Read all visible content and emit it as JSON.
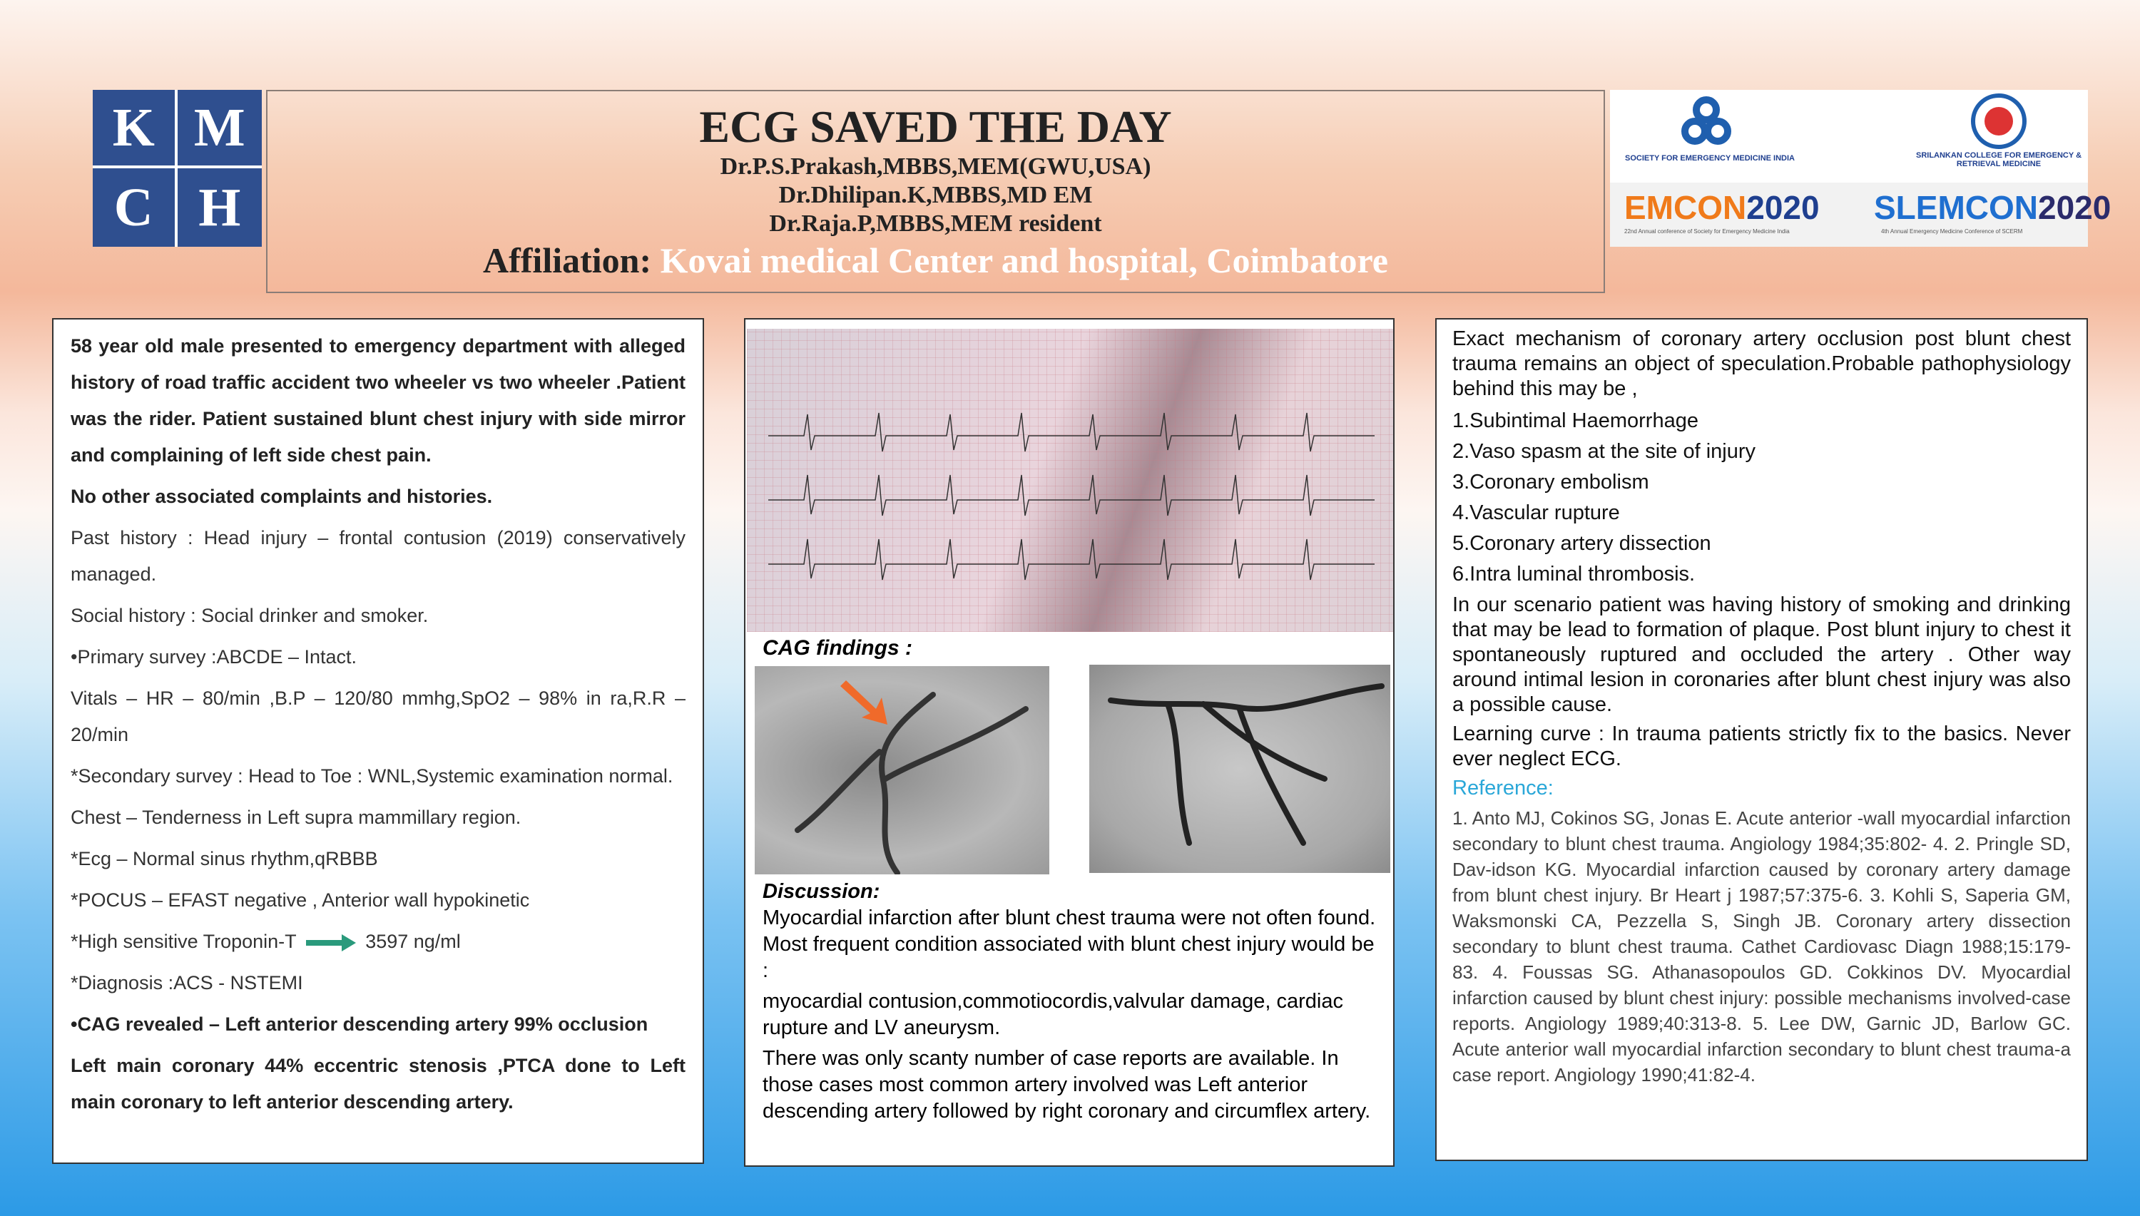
{
  "header": {
    "logo": [
      "K",
      "M",
      "C",
      "H"
    ],
    "title": "ECG SAVED THE DAY",
    "authors": [
      "Dr.P.S.Prakash,MBBS,MEM(GWU,USA)",
      "Dr.Dhilipan.K,MBBS,MD EM",
      "Dr.Raja.P,MBBS,MEM resident"
    ],
    "affiliation_label": "Affiliation:",
    "affiliation": "Kovai medical Center and hospital, Coimbatore"
  },
  "sponsors": {
    "semi": "SOCIETY FOR EMERGENCY MEDICINE INDIA",
    "scerm": "SRILANKAN COLLEGE FOR EMERGENCY & RETRIEVAL MEDICINE",
    "emcon": [
      "EMCON",
      "2020"
    ],
    "emcon_sub": "22nd Annual conference of Society for Emergency Medicine India",
    "slemcon": [
      "SLEMCON",
      "2020"
    ],
    "slemcon_sub": "4th Annual Emergency Medicine Conference of SCERM"
  },
  "case": {
    "items": [
      "58 year old male presented to emergency department with alleged history of road traffic accident two wheeler vs two wheeler .Patient was the rider. Patient sustained blunt chest injury with side mirror and complaining of left side chest pain.",
      "No other associated complaints and histories.",
      "Past history : Head injury – frontal contusion (2019) conservatively managed.",
      "Social history : Social drinker and smoker.",
      "•Primary survey :ABCDE – Intact.",
      "Vitals – HR – 80/min ,B.P – 120/80 mmhg,SpO2 – 98% in ra,R.R – 20/min",
      "*Secondary survey : Head to Toe : WNL,Systemic examination normal.",
      "Chest – Tenderness in Left supra mammillary region.",
      "*Ecg – Normal sinus rhythm,qRBBB",
      "*POCUS – EFAST negative , Anterior wall hypokinetic",
      {
        "label": "*High sensitive Troponin-T",
        "value": "3597 ng/ml"
      },
      "*Diagnosis :ACS - NSTEMI",
      "•CAG revealed – Left anterior descending artery 99% occlusion",
      "Left main coronary 44% eccentric stenosis ,PTCA done to Left main coronary to left anterior descending artery."
    ]
  },
  "findings": {
    "cag_label": "CAG findings :",
    "discussion_label": "Discussion:",
    "discussion": [
      "Myocardial infarction after blunt chest trauma were not often found. Most frequent condition associated with blunt chest injury would be :",
      "myocardial contusion,commotiocordis,valvular damage, cardiac rupture and LV aneurysm.",
      "There was only scanty number of case reports are available. In those cases most common artery involved was Left anterior descending artery followed by right coronary and circumflex artery."
    ]
  },
  "mechanism": {
    "intro": "Exact mechanism of coronary artery occlusion post blunt chest trauma  remains an object of speculation.Probable pathophysiology behind this may be ,",
    "list": [
      "1.Subintimal Haemorrhage",
      "2.Vaso spasm at the site of injury",
      "3.Coronary embolism",
      "4.Vascular rupture",
      "5.Coronary artery dissection",
      "6.Intra luminal thrombosis."
    ],
    "scenario": "In our scenario patient was having history of smoking and drinking that may be lead to formation of plaque. Post blunt injury to chest it spontaneously ruptured and occluded the artery . Other way around intimal lesion in coronaries after blunt  chest injury was also a possible cause.",
    "learning": "Learning curve : In trauma patients strictly fix to the basics. Never ever neglect ECG.",
    "reference_label": "Reference:",
    "references": "1. Anto MJ, Cokinos SG, Jonas E. Acute anterior -wall myocardial infarction secondary to blunt chest trauma. Angiology 1984;35:802- 4. 2. Pringle SD, Dav-idson KG. Myocardial infarction caused by coronary artery damage from blunt chest injury. Br Heart j 1987;57:375-6. 3. Kohli S, Saperia GM, Waksmonski CA, Pezzella S, Singh JB. Coronary artery dissection secondary to blunt chest trauma. Cathet Cardiovasc Diagn 1988;15:179-83. 4. Foussas SG. Athanasopoulos GD. Cokkinos DV. Myocardial infarction caused by blunt chest injury: possible mechanisms involved-case reports. Angiology 1989;40:313-8. 5. Lee DW, Garnic JD, Barlow GC. Acute anterior wall myocardial infarction secondary to blunt chest trauma-a case report. Angiology 1990;41:82-4."
  }
}
